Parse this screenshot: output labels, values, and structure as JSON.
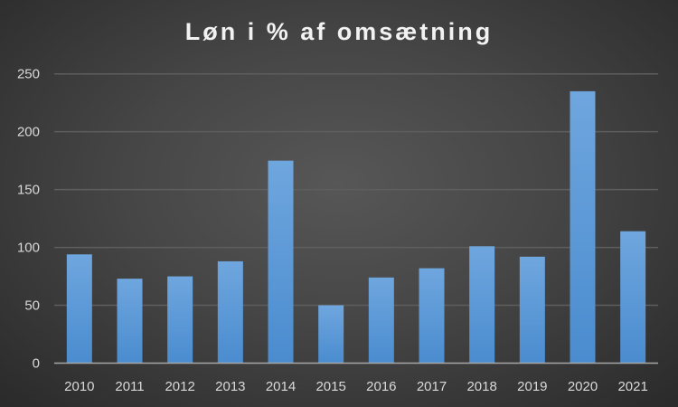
{
  "chart_data": {
    "type": "bar",
    "title": "Løn i % af omsætning",
    "xlabel": "",
    "ylabel": "",
    "categories": [
      "2010",
      "2011",
      "2012",
      "2013",
      "2014",
      "2015",
      "2016",
      "2017",
      "2018",
      "2019",
      "2020",
      "2021"
    ],
    "values": [
      94,
      73,
      75,
      88,
      175,
      50,
      74,
      82,
      101,
      92,
      235,
      114
    ],
    "ylim": [
      0,
      250
    ],
    "yticks": [
      0,
      50,
      100,
      150,
      200,
      250
    ],
    "grid": true,
    "legend": "none",
    "colors": {
      "bar_top": "#6fa6de",
      "bar_bottom": "#4a8ccf",
      "grid": "#5e5e5e",
      "axis": "#a6a6a6"
    }
  }
}
